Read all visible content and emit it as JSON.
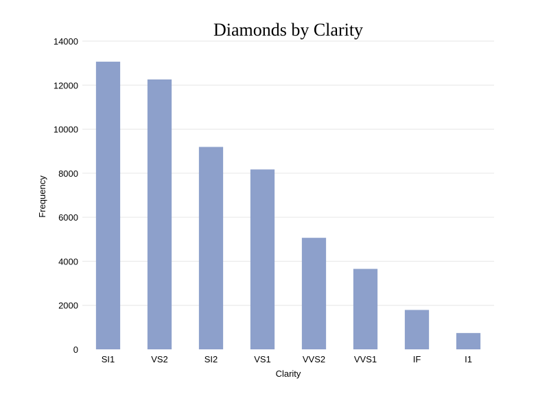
{
  "chart_data": {
    "type": "bar",
    "title": "Diamonds by Clarity",
    "xlabel": "Clarity",
    "ylabel": "Frequency",
    "categories": [
      "SI1",
      "VS2",
      "SI2",
      "VS1",
      "VVS2",
      "VVS1",
      "IF",
      "I1"
    ],
    "values": [
      13065,
      12258,
      9194,
      8171,
      5066,
      3655,
      1790,
      741
    ],
    "ylim": [
      0,
      14000
    ],
    "yticks": [
      0,
      2000,
      4000,
      6000,
      8000,
      10000,
      12000,
      14000
    ],
    "grid": true,
    "bar_color": "#8da0cb"
  }
}
